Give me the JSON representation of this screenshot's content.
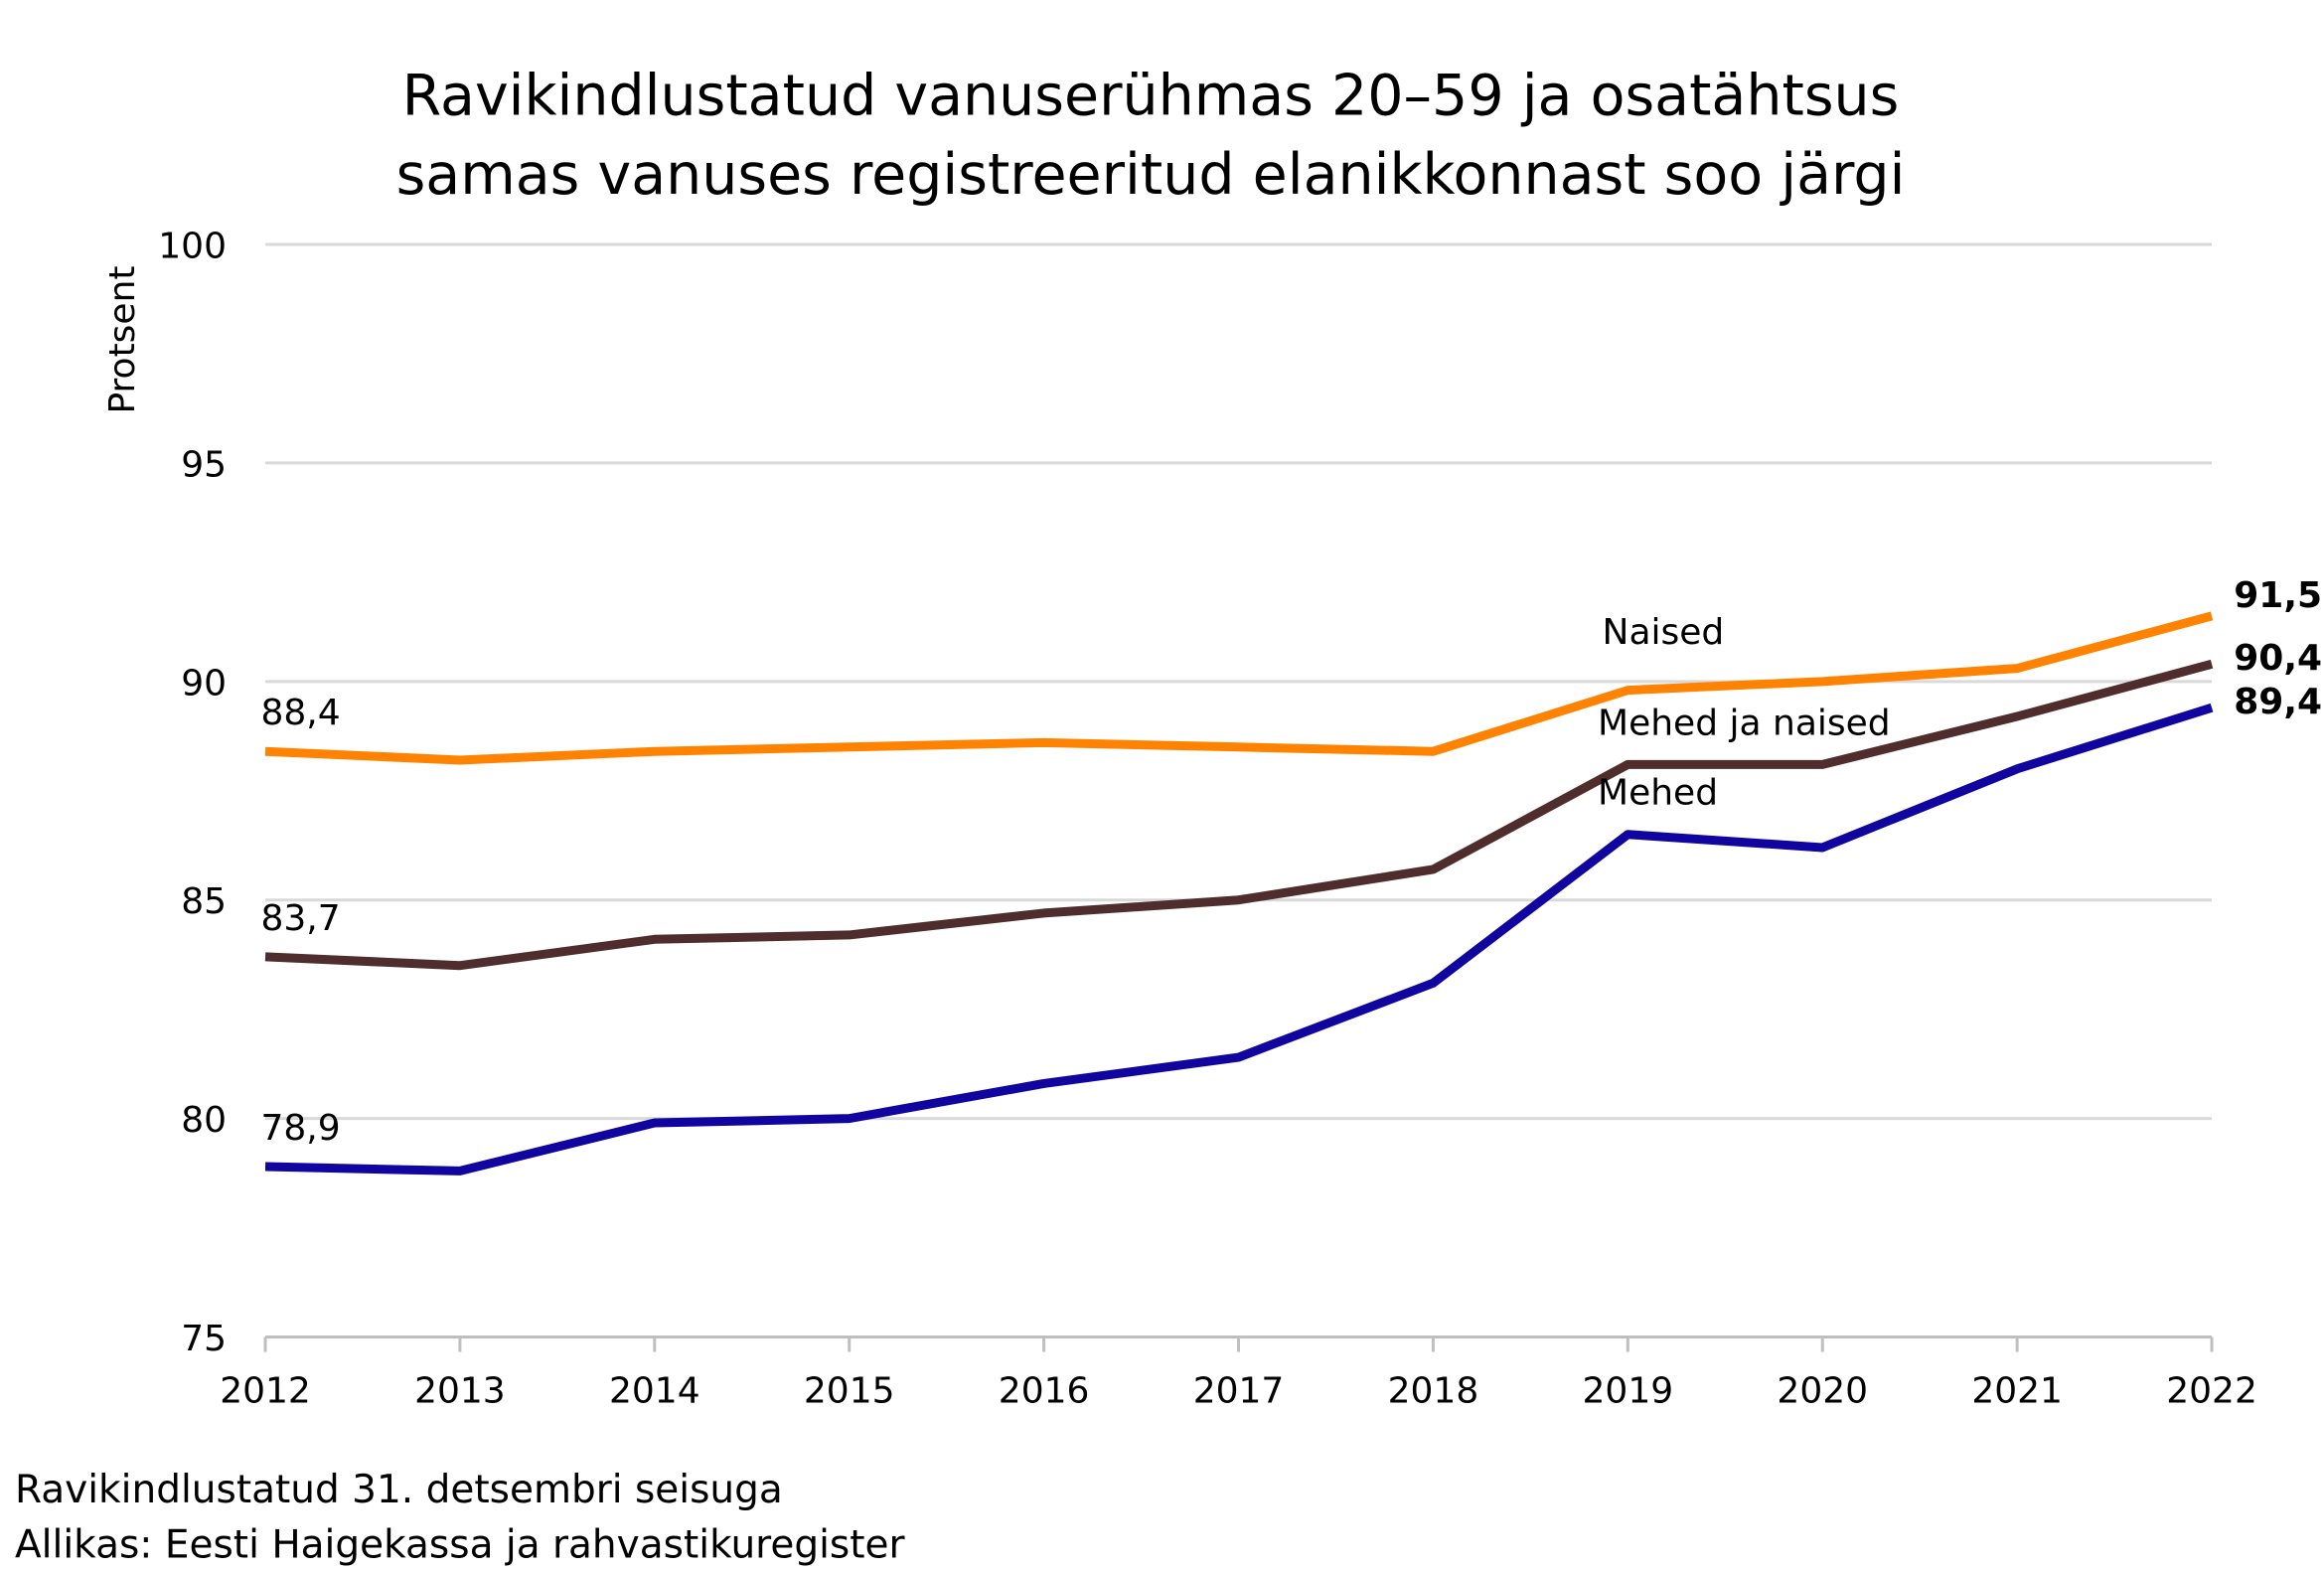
{
  "chart_data": {
    "type": "line",
    "title": [
      "Ravikindlustatud vanuserühmas 20–59 ja osatähtsus",
      "samas vanuses registreeritud elanikkonnast soo järgi"
    ],
    "ylabel": "Protsent",
    "xlabel": "",
    "x": [
      "2012",
      "2013",
      "2014",
      "2015",
      "2016",
      "2017",
      "2018",
      "2019",
      "2020",
      "2021",
      "2022"
    ],
    "ylim": [
      75,
      100
    ],
    "yticks": [
      "75",
      "80",
      "85",
      "90",
      "95",
      "100"
    ],
    "grid": true,
    "series": [
      {
        "name": "Naised",
        "color": "#FF8200",
        "values": [
          88.4,
          88.2,
          88.4,
          88.5,
          88.6,
          88.5,
          88.4,
          89.8,
          90.0,
          90.3,
          91.5
        ],
        "start_label": "88,4",
        "end_label": "91,5"
      },
      {
        "name": "Mehed ja naised",
        "color": "#4F2D2D",
        "values": [
          83.7,
          83.5,
          84.1,
          84.2,
          84.7,
          85.0,
          85.7,
          88.1,
          88.1,
          89.2,
          90.4
        ],
        "start_label": "83,7",
        "end_label": "90,4"
      },
      {
        "name": "Mehed",
        "color": "#10069F",
        "values": [
          78.9,
          78.8,
          79.9,
          80.0,
          80.8,
          81.4,
          83.1,
          86.5,
          86.2,
          88.0,
          89.4
        ],
        "start_label": "78,9",
        "end_label": "89,4"
      }
    ],
    "footnotes": [
      "Ravikindlustatud 31. detsembri seisuga",
      "Allikas: Eesti Haigekassa ja rahvastikuregister"
    ]
  }
}
